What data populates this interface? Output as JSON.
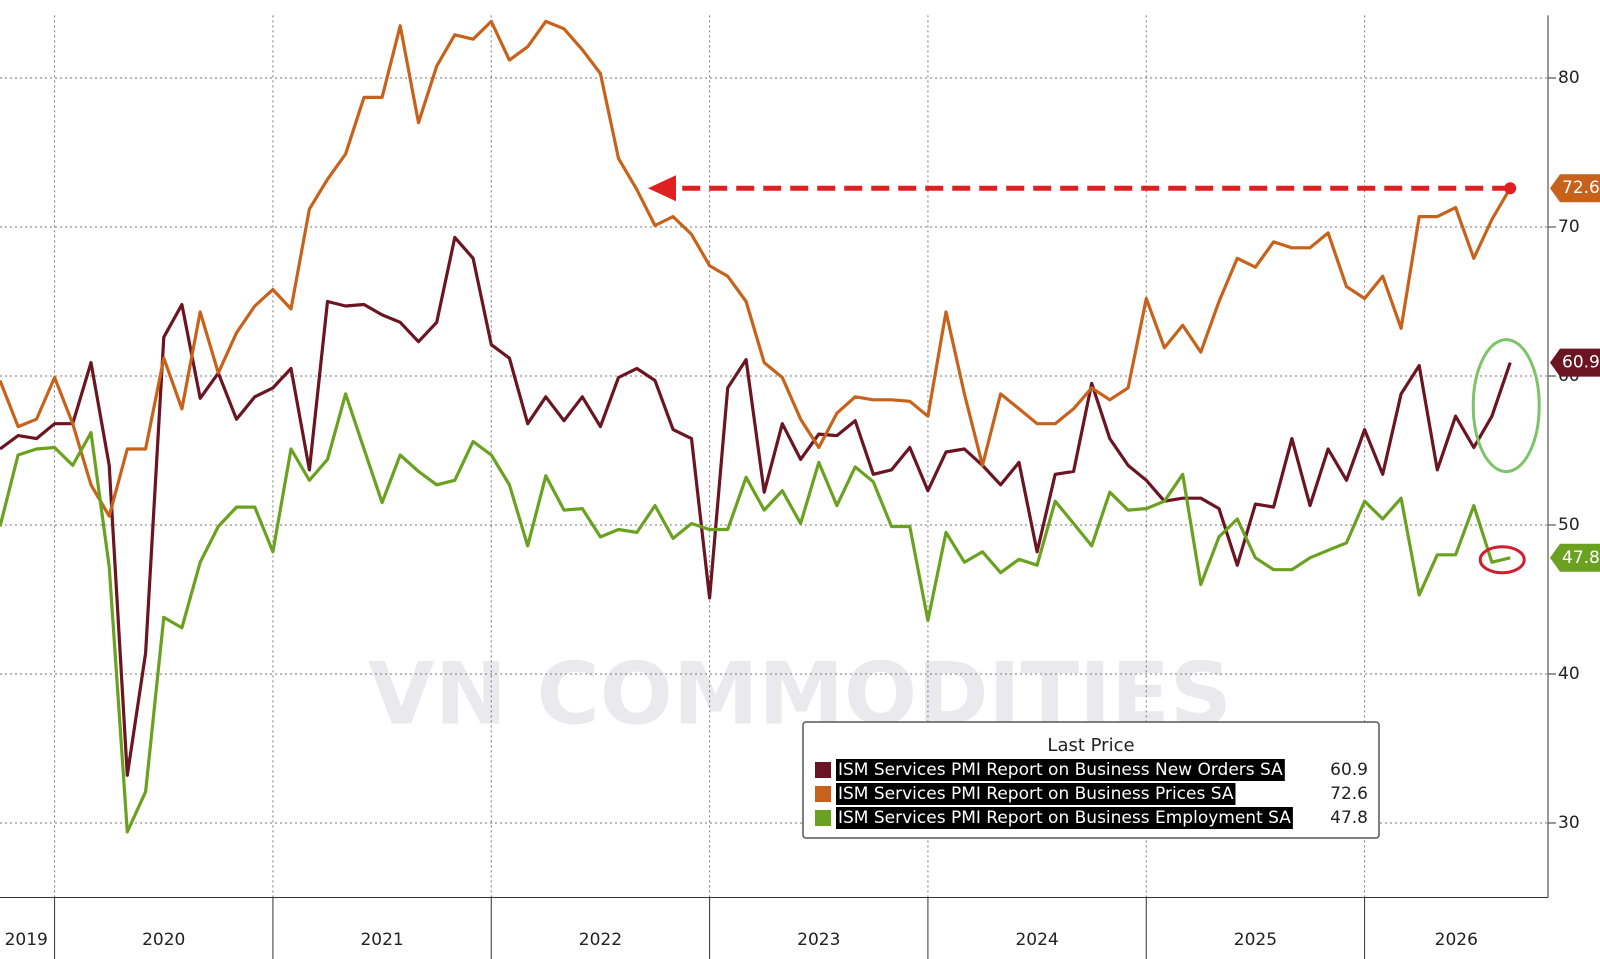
{
  "chart_data": {
    "type": "line",
    "watermark": "VN COMMODITIES",
    "legend_title": "Last Price",
    "x": [
      2019.75,
      2019.833,
      2019.917,
      2020.0,
      2020.083,
      2020.167,
      2020.25,
      2020.333,
      2020.417,
      2020.5,
      2020.583,
      2020.667,
      2020.75,
      2020.833,
      2020.917,
      2021.0,
      2021.083,
      2021.167,
      2021.25,
      2021.333,
      2021.417,
      2021.5,
      2021.583,
      2021.667,
      2021.75,
      2021.833,
      2021.917,
      2022.0,
      2022.083,
      2022.167,
      2022.25,
      2022.333,
      2022.417,
      2022.5,
      2022.583,
      2022.667,
      2022.75,
      2022.833,
      2022.917,
      2023.0,
      2023.083,
      2023.167,
      2023.25,
      2023.333,
      2023.417,
      2023.5,
      2023.583,
      2023.667,
      2023.75,
      2023.833,
      2023.917,
      2024.0,
      2024.083,
      2024.167,
      2024.25,
      2024.333,
      2024.417,
      2024.5,
      2024.583,
      2024.667,
      2024.75,
      2024.833,
      2024.917,
      2025.0,
      2025.083,
      2025.167,
      2025.25,
      2025.333,
      2025.417,
      2025.5,
      2025.583,
      2025.667,
      2025.75,
      2025.833,
      2025.917,
      2026.0,
      2026.083,
      2026.167,
      2026.25,
      2026.333,
      2026.417,
      2026.5,
      2026.583,
      2026.667
    ],
    "series": [
      {
        "name": "ISM Services PMI Report on Business New Orders SA",
        "color": "#6b1422",
        "values": [
          55.1,
          56.0,
          55.8,
          56.8,
          56.8,
          60.9,
          54.0,
          33.2,
          41.4,
          62.6,
          64.8,
          58.5,
          60.2,
          57.1,
          58.6,
          59.2,
          60.5,
          53.7,
          65.0,
          64.7,
          64.8,
          64.1,
          63.6,
          62.3,
          63.6,
          69.3,
          67.9,
          62.1,
          61.2,
          56.8,
          58.6,
          57.0,
          58.6,
          56.6,
          59.9,
          60.5,
          59.7,
          56.4,
          55.8,
          45.1,
          59.2,
          61.1,
          52.2,
          56.8,
          54.4,
          56.1,
          56.0,
          57.0,
          53.4,
          53.7,
          55.2,
          52.3,
          54.9,
          55.1,
          54.0,
          52.7,
          54.2,
          48.2,
          53.4,
          53.6,
          59.5,
          55.8,
          54.0,
          53.0,
          51.6,
          51.8,
          51.8,
          51.1,
          47.3,
          51.4,
          51.2,
          55.8,
          51.3,
          55.1,
          53.0,
          56.4,
          53.4,
          58.8,
          60.7,
          53.7,
          57.3,
          55.2,
          57.3,
          60.9
        ]
      },
      {
        "name": "ISM Services PMI Report on Business Prices SA",
        "color": "#c8621b",
        "values": [
          59.7,
          56.6,
          57.1,
          59.9,
          56.8,
          52.7,
          50.6,
          55.1,
          55.1,
          61.2,
          57.8,
          64.3,
          60.2,
          62.9,
          64.7,
          65.8,
          64.5,
          71.2,
          73.2,
          74.9,
          78.7,
          78.7,
          83.5,
          77.0,
          80.8,
          82.9,
          82.6,
          83.8,
          81.2,
          82.1,
          83.8,
          83.3,
          81.9,
          80.3,
          74.6,
          72.5,
          70.1,
          70.7,
          69.5,
          67.4,
          66.7,
          65.0,
          60.9,
          59.9,
          57.1,
          55.2,
          57.5,
          58.6,
          58.4,
          58.4,
          58.3,
          57.3,
          64.3,
          58.8,
          54.0,
          58.8,
          57.8,
          56.8,
          56.8,
          57.8,
          59.2,
          58.4,
          59.2,
          65.2,
          61.9,
          63.4,
          61.6,
          65.0,
          67.9,
          67.3,
          69.0,
          68.6,
          68.6,
          69.6,
          66.0,
          65.2,
          66.7,
          63.2,
          70.7,
          70.7,
          71.3,
          67.9,
          70.5,
          72.6
        ]
      },
      {
        "name": "ISM Services PMI Report on Business Employment SA",
        "color": "#6aa121",
        "values": [
          49.9,
          54.7,
          55.1,
          55.2,
          54.0,
          56.2,
          47.2,
          29.4,
          32.1,
          43.8,
          43.1,
          47.5,
          49.9,
          51.2,
          51.2,
          48.2,
          55.1,
          53.0,
          54.4,
          58.8,
          55.1,
          51.5,
          54.7,
          53.6,
          52.7,
          53.0,
          55.6,
          54.7,
          52.7,
          48.6,
          53.3,
          51.0,
          51.1,
          49.2,
          49.7,
          49.5,
          51.3,
          49.1,
          50.1,
          49.7,
          49.7,
          53.2,
          51.0,
          52.3,
          50.1,
          54.2,
          51.3,
          53.9,
          52.9,
          49.9,
          49.9,
          43.6,
          49.5,
          47.5,
          48.2,
          46.8,
          47.7,
          47.3,
          51.6,
          50.1,
          48.6,
          52.2,
          51.0,
          51.1,
          51.6,
          53.4,
          46.0,
          49.2,
          50.4,
          47.8,
          47.0,
          47.0,
          47.8,
          48.3,
          48.8,
          51.6,
          50.4,
          51.8,
          45.3,
          48.0,
          48.0,
          51.3,
          47.5,
          47.8
        ]
      }
    ],
    "xlim": [
      2019.75,
      2026.84
    ],
    "xgrid": [
      2020,
      2021,
      2022,
      2023,
      2024,
      2025,
      2026
    ],
    "xticks": [
      {
        "value": 2019.87,
        "label": "2019"
      },
      {
        "value": 2020.5,
        "label": "2020"
      },
      {
        "value": 2021.5,
        "label": "2021"
      },
      {
        "value": 2022.5,
        "label": "2022"
      },
      {
        "value": 2023.5,
        "label": "2023"
      },
      {
        "value": 2024.5,
        "label": "2024"
      },
      {
        "value": 2025.5,
        "label": "2025"
      },
      {
        "value": 2026.42,
        "label": "2026"
      }
    ],
    "ylim": [
      25,
      84.2
    ],
    "yticks": [
      30,
      40,
      50,
      60,
      70,
      80
    ],
    "grid": true
  }
}
